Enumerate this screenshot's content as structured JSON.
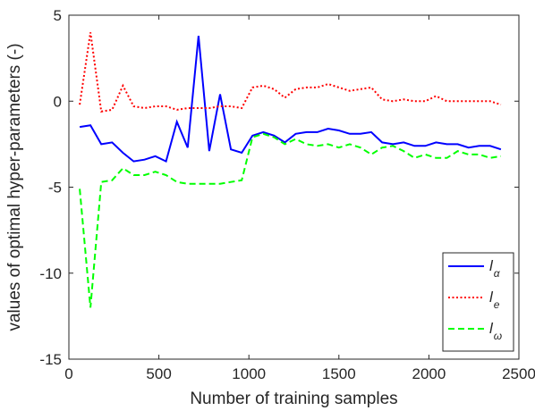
{
  "chart_data": {
    "type": "line",
    "title": "",
    "xlabel": "Number of training samples",
    "ylabel": "values of optimal hyper-parameters (-)",
    "xlim": [
      0,
      2500
    ],
    "ylim": [
      -15,
      5
    ],
    "xticks": [
      0,
      500,
      1000,
      1500,
      2000,
      2500
    ],
    "yticks": [
      -15,
      -10,
      -5,
      0,
      5
    ],
    "grid": false,
    "legend_position": "bottom-right",
    "x": [
      60,
      120,
      180,
      240,
      300,
      360,
      420,
      480,
      540,
      600,
      660,
      720,
      780,
      840,
      900,
      960,
      1020,
      1080,
      1140,
      1200,
      1260,
      1320,
      1380,
      1440,
      1500,
      1560,
      1620,
      1680,
      1740,
      1800,
      1860,
      1920,
      1980,
      2040,
      2100,
      2160,
      2220,
      2280,
      2340,
      2400
    ],
    "series": [
      {
        "name_main": "l",
        "name_sub": "α",
        "color": "#0000ff",
        "dash": "solid",
        "values": [
          -1.5,
          -1.4,
          -2.5,
          -2.4,
          -3.0,
          -3.5,
          -3.4,
          -3.2,
          -3.5,
          -1.2,
          -2.7,
          3.8,
          -2.9,
          0.4,
          -2.8,
          -3.0,
          -2.0,
          -1.8,
          -2.0,
          -2.4,
          -1.9,
          -1.8,
          -1.8,
          -1.6,
          -1.7,
          -1.9,
          -1.9,
          -1.8,
          -2.4,
          -2.5,
          -2.4,
          -2.6,
          -2.6,
          -2.4,
          -2.5,
          -2.5,
          -2.7,
          -2.6,
          -2.6,
          -2.8
        ]
      },
      {
        "name_main": "l",
        "name_sub": "e",
        "color": "#ff0000",
        "dash": "dotted",
        "values": [
          -0.2,
          4.0,
          -0.6,
          -0.5,
          0.9,
          -0.3,
          -0.4,
          -0.3,
          -0.3,
          -0.5,
          -0.4,
          -0.4,
          -0.4,
          -0.3,
          -0.3,
          -0.4,
          0.8,
          0.9,
          0.7,
          0.2,
          0.7,
          0.8,
          0.8,
          1.0,
          0.8,
          0.6,
          0.7,
          0.8,
          0.1,
          0.0,
          0.1,
          0.0,
          0.0,
          0.3,
          0.0,
          0.0,
          0.0,
          0.0,
          0.0,
          -0.2
        ]
      },
      {
        "name_main": "l",
        "name_sub": "ω",
        "color": "#00ff00",
        "dash": "dashed",
        "values": [
          -5.1,
          -12.0,
          -4.7,
          -4.6,
          -3.9,
          -4.3,
          -4.3,
          -4.1,
          -4.3,
          -4.7,
          -4.8,
          -4.8,
          -4.8,
          -4.8,
          -4.7,
          -4.6,
          -2.1,
          -1.9,
          -2.1,
          -2.5,
          -2.2,
          -2.5,
          -2.6,
          -2.5,
          -2.7,
          -2.5,
          -2.7,
          -3.1,
          -2.7,
          -2.6,
          -2.9,
          -3.3,
          -3.1,
          -3.3,
          -3.3,
          -2.9,
          -3.1,
          -3.1,
          -3.3,
          -3.2
        ]
      }
    ]
  }
}
